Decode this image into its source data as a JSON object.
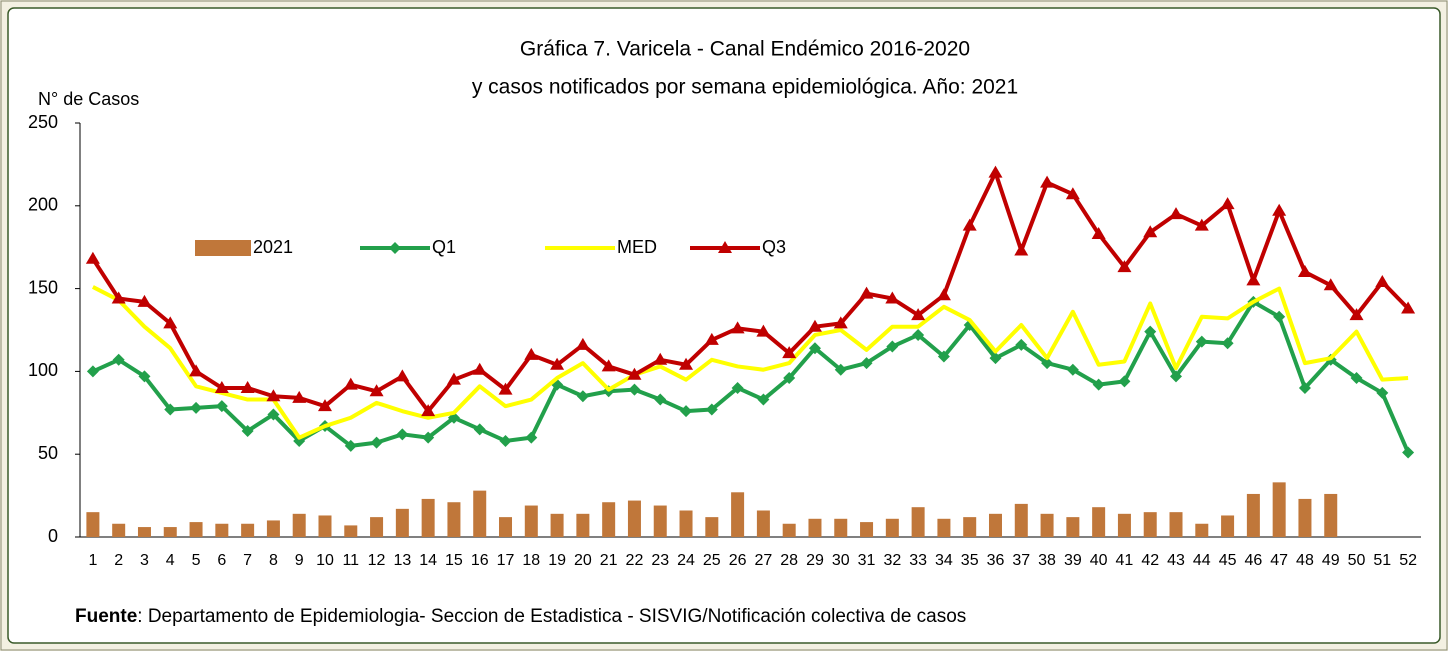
{
  "chart_data": {
    "type": "combo",
    "title": "Gráfica 7.  Varicela - Canal Endémico 2016-2020",
    "subtitle": "y casos notificados por semana epidemiológica.  Año: 2021",
    "y_label": "N° de Casos",
    "source_label": "Fuente",
    "source_text": ": Departamento de Epidemiologia- Seccion de Estadistica - SISVIG/Notificación colectiva de casos",
    "categories": [
      "1",
      "2",
      "3",
      "4",
      "5",
      "6",
      "7",
      "8",
      "9",
      "10",
      "11",
      "12",
      "13",
      "14",
      "15",
      "16",
      "17",
      "18",
      "19",
      "20",
      "21",
      "22",
      "23",
      "24",
      "25",
      "26",
      "27",
      "28",
      "29",
      "30",
      "31",
      "32",
      "33",
      "34",
      "35",
      "36",
      "37",
      "38",
      "39",
      "40",
      "41",
      "42",
      "43",
      "44",
      "45",
      "46",
      "47",
      "48",
      "49",
      "50",
      "51",
      "52"
    ],
    "ylim": [
      0,
      250
    ],
    "yticks": [
      0,
      50,
      100,
      150,
      200,
      250
    ],
    "series": [
      {
        "name": "2021",
        "type": "bar",
        "color": "#c0773a",
        "values": [
          15,
          8,
          6,
          6,
          9,
          8,
          8,
          10,
          14,
          13,
          7,
          12,
          17,
          23,
          21,
          28,
          12,
          19,
          14,
          14,
          21,
          22,
          19,
          16,
          12,
          27,
          16,
          8,
          11,
          11,
          9,
          11,
          18,
          11,
          12,
          14,
          20,
          14,
          12,
          18,
          14,
          15,
          15,
          8,
          13,
          26,
          33,
          23,
          26,
          null,
          null,
          null
        ]
      },
      {
        "name": "Q1",
        "type": "line",
        "marker": "diamond",
        "color": "#22a04b",
        "values": [
          100,
          107,
          97,
          77,
          78,
          79,
          64,
          74,
          58,
          67,
          55,
          57,
          62,
          60,
          72,
          65,
          58,
          60,
          92,
          85,
          88,
          89,
          83,
          76,
          77,
          90,
          83,
          96,
          114,
          101,
          105,
          115,
          122,
          109,
          128,
          108,
          116,
          105,
          101,
          92,
          94,
          124,
          97,
          118,
          117,
          142,
          133,
          90,
          107,
          96,
          87,
          51
        ]
      },
      {
        "name": "MED",
        "type": "line",
        "color": "#ffff00",
        "values": [
          151,
          143,
          127,
          114,
          91,
          87,
          83,
          83,
          60,
          67,
          72,
          81,
          76,
          72,
          75,
          91,
          79,
          83,
          96,
          105,
          89,
          98,
          103,
          95,
          107,
          103,
          101,
          105,
          122,
          125,
          113,
          127,
          127,
          139,
          131,
          112,
          128,
          108,
          136,
          104,
          106,
          141,
          102,
          133,
          132,
          142,
          150,
          105,
          108,
          124,
          95,
          96
        ]
      },
      {
        "name": "Q3",
        "type": "line",
        "marker": "triangle",
        "color": "#c00000",
        "values": [
          168,
          144,
          142,
          129,
          100,
          90,
          90,
          85,
          84,
          79,
          92,
          88,
          97,
          76,
          95,
          101,
          89,
          110,
          104,
          116,
          103,
          98,
          107,
          104,
          119,
          126,
          124,
          111,
          127,
          129,
          147,
          144,
          134,
          146,
          188,
          220,
          173,
          214,
          207,
          183,
          163,
          184,
          195,
          188,
          201,
          155,
          197,
          160,
          152,
          134,
          154,
          138
        ]
      }
    ]
  }
}
